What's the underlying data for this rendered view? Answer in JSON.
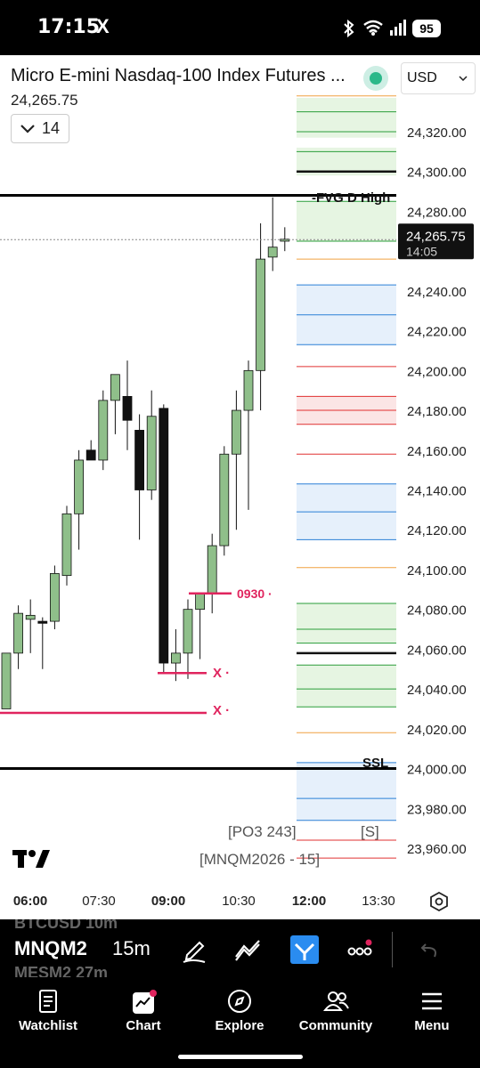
{
  "status": {
    "time": "17:15",
    "app_icon": "X",
    "battery": "95"
  },
  "header": {
    "title": "Micro E-mini Nasdaq-100 Index Futures ...",
    "price": "24,265.75",
    "interval": "14",
    "currency": "USD"
  },
  "price_scale": {
    "labels": [
      "24,320.00",
      "24,300.00",
      "24,280.00",
      "24,240.00",
      "24,220.00",
      "24,200.00",
      "24,180.00",
      "24,160.00",
      "24,140.00",
      "24,120.00",
      "24,100.00",
      "24,080.00",
      "24,060.00",
      "24,040.00",
      "24,020.00",
      "24,000.00",
      "23,980.00",
      "23,960.00"
    ],
    "current_price": "24,265.75",
    "countdown": "14:05"
  },
  "time_axis": {
    "labels": [
      "06:00",
      "07:30",
      "09:00",
      "10:30",
      "12:00",
      "13:30"
    ],
    "bold": [
      "06:00",
      "09:00",
      "12:00"
    ]
  },
  "annotations": {
    "fvg": "-FVG D High",
    "ssl": "SSL",
    "open": "0930",
    "x1": "X",
    "x2": "X"
  },
  "chart_footer": {
    "po3": "[PO3 243]",
    "s": "[S]",
    "symbol_interval": "[MNQM2026 - 15]"
  },
  "toolbar": {
    "ghost_top": "BTCUSD 10m",
    "symbol": "MNQM2",
    "interval": "15m",
    "ghost_bottom": "MESM2 27m"
  },
  "nav": {
    "watchlist": "Watchlist",
    "chart": "Chart",
    "explore": "Explore",
    "community": "Community",
    "menu": "Menu"
  },
  "colors": {
    "up": "#8fbf8a",
    "down": "#111111",
    "pink": "#e0245e",
    "green_zone": "#e6f5e2",
    "blue_zone": "#e6f0fb",
    "red_zone": "#fbe5e5"
  },
  "chart_data": {
    "type": "candlestick",
    "y_range": [
      23950,
      24345
    ],
    "candles": [
      {
        "o": 24030,
        "h": 24058,
        "l": 24030,
        "c": 24058
      },
      {
        "o": 24058,
        "h": 24082,
        "l": 24050,
        "c": 24078
      },
      {
        "o": 24075,
        "h": 24085,
        "l": 24058,
        "c": 24077
      },
      {
        "o": 24074,
        "h": 24076,
        "l": 24050,
        "c": 24073
      },
      {
        "o": 24074,
        "h": 24102,
        "l": 24070,
        "c": 24098
      },
      {
        "o": 24097,
        "h": 24132,
        "l": 24092,
        "c": 24128
      },
      {
        "o": 24128,
        "h": 24160,
        "l": 24110,
        "c": 24155
      },
      {
        "o": 24160,
        "h": 24165,
        "l": 24155,
        "c": 24155
      },
      {
        "o": 24155,
        "h": 24190,
        "l": 24150,
        "c": 24185
      },
      {
        "o": 24185,
        "h": 24198,
        "l": 24168,
        "c": 24198
      },
      {
        "o": 24187,
        "h": 24205,
        "l": 24160,
        "c": 24175
      },
      {
        "o": 24170,
        "h": 24178,
        "l": 24115,
        "c": 24140
      },
      {
        "o": 24140,
        "h": 24190,
        "l": 24135,
        "c": 24177
      },
      {
        "o": 24181,
        "h": 24183,
        "l": 24048,
        "c": 24053
      },
      {
        "o": 24053,
        "h": 24070,
        "l": 24044,
        "c": 24058
      },
      {
        "o": 24058,
        "h": 24085,
        "l": 24045,
        "c": 24080
      },
      {
        "o": 24080,
        "h": 24088,
        "l": 24055,
        "c": 24088
      },
      {
        "o": 24088,
        "h": 24118,
        "l": 24078,
        "c": 24112
      },
      {
        "o": 24112,
        "h": 24162,
        "l": 24107,
        "c": 24158
      },
      {
        "o": 24158,
        "h": 24190,
        "l": 24120,
        "c": 24180
      },
      {
        "o": 24180,
        "h": 24205,
        "l": 24130,
        "c": 24200
      },
      {
        "o": 24200,
        "h": 24274,
        "l": 24180,
        "c": 24256
      },
      {
        "o": 24257,
        "h": 24287,
        "l": 24250,
        "c": 24262
      },
      {
        "o": 24265,
        "h": 24272,
        "l": 24260,
        "c": 24266
      }
    ]
  }
}
